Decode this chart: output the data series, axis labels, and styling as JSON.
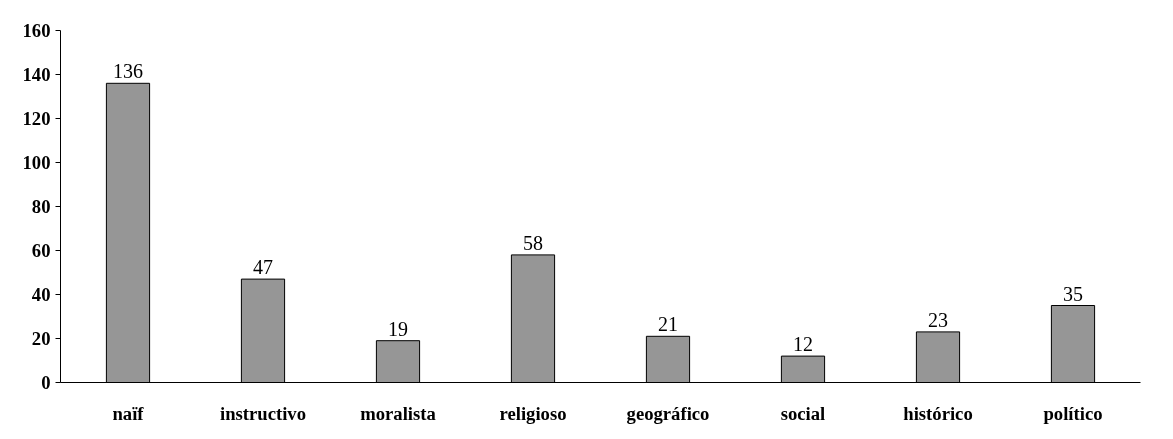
{
  "chart_data": {
    "type": "bar",
    "categories": [
      "naïf",
      "instructivo",
      "moralista",
      "religioso",
      "geográfico",
      "social",
      "histórico",
      "político"
    ],
    "values": [
      136,
      47,
      19,
      58,
      21,
      12,
      23,
      35
    ],
    "color": "#969696",
    "ylim": [
      0,
      160
    ],
    "yticks": [
      0,
      20,
      40,
      60,
      80,
      100,
      120,
      140,
      160
    ],
    "grid": false,
    "data_labels": true
  }
}
